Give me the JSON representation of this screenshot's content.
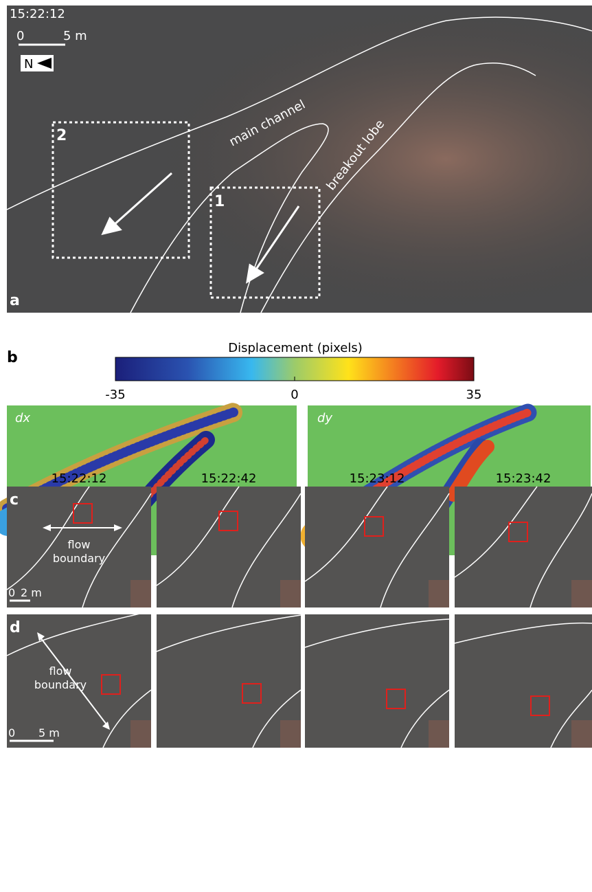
{
  "panel_a": {
    "label": "a",
    "time": "15:22:12",
    "scale": {
      "zero": "0",
      "length": "5 m"
    },
    "north": "N",
    "boxes": [
      "2",
      "1"
    ],
    "labels": [
      "main channel",
      "breakout lobe"
    ]
  },
  "panel_b": {
    "label": "b",
    "colorbar": {
      "title": "Displacement (pixels)",
      "lim": [
        -35,
        35
      ],
      "ticks": [
        -35,
        0,
        35
      ]
    },
    "maps": [
      "dx",
      "dy"
    ]
  },
  "panel_c": {
    "label": "c",
    "times": [
      "15:22:12",
      "15:22:42",
      "15:23:12",
      "15:23:42"
    ],
    "annotation": [
      "flow",
      "boundary"
    ],
    "scale": {
      "zero": "0",
      "length": "2 m"
    }
  },
  "panel_d": {
    "label": "d",
    "annotation": [
      "flow",
      "boundary"
    ],
    "scale": {
      "zero": "0",
      "length": "5 m"
    }
  }
}
